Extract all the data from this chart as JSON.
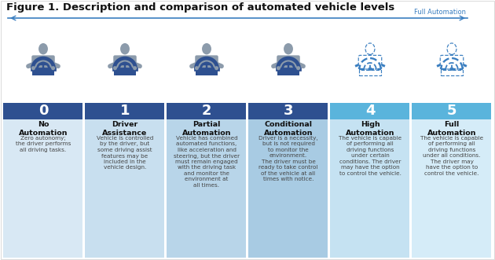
{
  "title": "Figure 1. Description and comparison of automated vehicle levels",
  "full_automation_label": "Full Automation",
  "levels": [
    {
      "number": "0",
      "name": "No\nAutomation",
      "description": "Zero autonomy;\nthe driver performs\nall driving tasks.",
      "box_color": "#2E5090",
      "bg_color": "#D8E8F4",
      "solid": true
    },
    {
      "number": "1",
      "name": "Driver\nAssistance",
      "description": "Vehicle is controlled\nby the driver, but\nsome driving assist\nfeatures may be\nincluded in the\nvehicle design.",
      "box_color": "#2E5090",
      "bg_color": "#C8DFEF",
      "solid": true
    },
    {
      "number": "2",
      "name": "Partial\nAutomation",
      "description": "Vehicle has combined\nautomated functions,\nlike acceleration and\nsteering, but the driver\nmust remain engaged\nwith the driving task\nand monitor the\nenvironment at\nall times.",
      "box_color": "#2E5090",
      "bg_color": "#B8D5E9",
      "solid": true
    },
    {
      "number": "3",
      "name": "Conditional\nAutomation",
      "description": "Driver is a necessity,\nbut is not required\nto monitor the\nenvironment.\nThe driver must be\nready to take control\nof the vehicle at all\ntimes with notice.",
      "box_color": "#2E5090",
      "bg_color": "#A8CBE3",
      "solid": true
    },
    {
      "number": "4",
      "name": "High\nAutomation",
      "description": "The vehicle is capable\nof performing all\ndriving functions\nunder certain\nconditions. The driver\nmay have the option\nto control the vehicle.",
      "box_color": "#5AB4DC",
      "bg_color": "#C5E2F2",
      "solid": false
    },
    {
      "number": "5",
      "name": "Full\nAutomation",
      "description": "The vehicle is capable\nof performing all\ndriving functions\nunder all conditions.\nThe driver may\nhave the option to\ncontrol the vehicle.",
      "box_color": "#5AB4DC",
      "bg_color": "#D5ECF8",
      "solid": false
    }
  ],
  "line_color": "#3A7EC0",
  "title_color": "#111111",
  "number_text_color": "#FFFFFF",
  "name_text_color": "#111111",
  "desc_text_color": "#444444",
  "icon_solid_body": "#8C9BAB",
  "icon_solid_wheel": "#2E5090",
  "icon_dashed_body": "#B8C8D8",
  "icon_dashed_wheel": "#3A7EC0"
}
